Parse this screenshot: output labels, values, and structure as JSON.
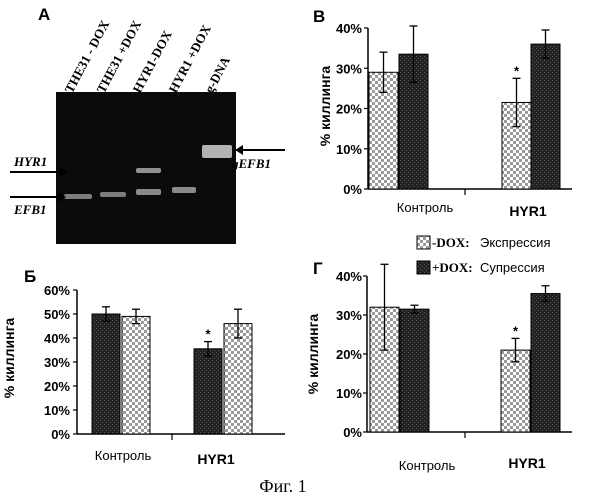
{
  "figure_caption": "Фиг. 1",
  "gel": {
    "letter": "A",
    "lanes": [
      "THE31 - DOX",
      "THE31 +DOX",
      "HYR1-DOX",
      "HYR1 +DOX",
      "g-DNA"
    ],
    "labels": {
      "hyr1": "HYR1",
      "efb1": "EFB1",
      "gefb1": "gEFB1"
    }
  },
  "legend": {
    "items": [
      {
        "key": "-DOX:",
        "text": "Экспрессия",
        "pattern": "checker"
      },
      {
        "key": "+DOX:",
        "text": "Супрессия",
        "pattern": "solid"
      }
    ]
  },
  "chart_data": [
    {
      "type": "bar",
      "panel": "B",
      "categories": [
        "Контроль",
        "HYR1"
      ],
      "ylabel": "% киллинга",
      "yticks": [
        "0%",
        "10%",
        "20%",
        "30%",
        "40%"
      ],
      "ylim": [
        0,
        40
      ],
      "series": [
        {
          "name": "-DOX",
          "pattern": "checker",
          "values": [
            29,
            21.5
          ],
          "errors": [
            5,
            6
          ]
        },
        {
          "name": "+DOX",
          "pattern": "solid",
          "values": [
            33.5,
            36
          ],
          "errors": [
            7,
            3.5
          ]
        }
      ],
      "annotations": [
        {
          "category": 1,
          "series": 0,
          "text": "*"
        }
      ]
    },
    {
      "type": "bar",
      "panel": "Б",
      "categories": [
        "Контроль",
        "HYR1"
      ],
      "ylabel": "% киллинга",
      "yticks": [
        "0%",
        "10%",
        "20%",
        "30%",
        "40%",
        "50%",
        "60%"
      ],
      "ylim": [
        0,
        60
      ],
      "series": [
        {
          "name": "+DOX",
          "pattern": "solid",
          "values": [
            50,
            35.5
          ],
          "errors": [
            3,
            3
          ]
        },
        {
          "name": "-DOX",
          "pattern": "checker",
          "values": [
            49,
            46
          ],
          "errors": [
            3,
            6
          ]
        }
      ],
      "annotations": [
        {
          "category": 1,
          "series": 0,
          "text": "*"
        }
      ]
    },
    {
      "type": "bar",
      "panel": "Г",
      "categories": [
        "Контроль",
        "HYR1"
      ],
      "ylabel": "% киллинга",
      "yticks": [
        "0%",
        "10%",
        "20%",
        "30%",
        "40%"
      ],
      "ylim": [
        0,
        40
      ],
      "series": [
        {
          "name": "-DOX",
          "pattern": "checker",
          "values": [
            32,
            21
          ],
          "errors": [
            11,
            3
          ]
        },
        {
          "name": "+DOX",
          "pattern": "solid",
          "values": [
            31.5,
            35.5
          ],
          "errors": [
            1,
            2
          ]
        }
      ],
      "annotations": [
        {
          "category": 1,
          "series": 0,
          "text": "*"
        }
      ]
    }
  ]
}
